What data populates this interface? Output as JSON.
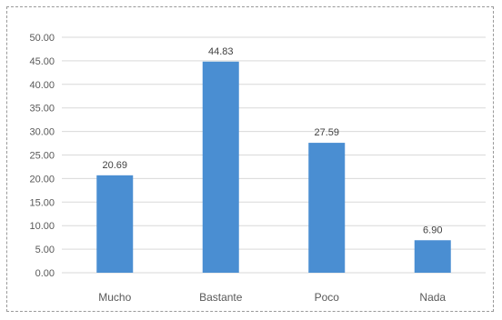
{
  "chart_data": {
    "type": "bar",
    "categories": [
      "Mucho",
      "Bastante",
      "Poco",
      "Nada"
    ],
    "values": [
      20.69,
      44.83,
      27.59,
      6.9
    ],
    "data_labels": [
      "20.69",
      "44.83",
      "27.59",
      "6.90"
    ],
    "ylim": [
      0,
      50
    ],
    "yticks": [
      "0.00",
      "5.00",
      "10.00",
      "15.00",
      "20.00",
      "25.00",
      "30.00",
      "35.00",
      "40.00",
      "45.00",
      "50.00"
    ],
    "grid": true,
    "bar_color": "#4a8ed2"
  }
}
